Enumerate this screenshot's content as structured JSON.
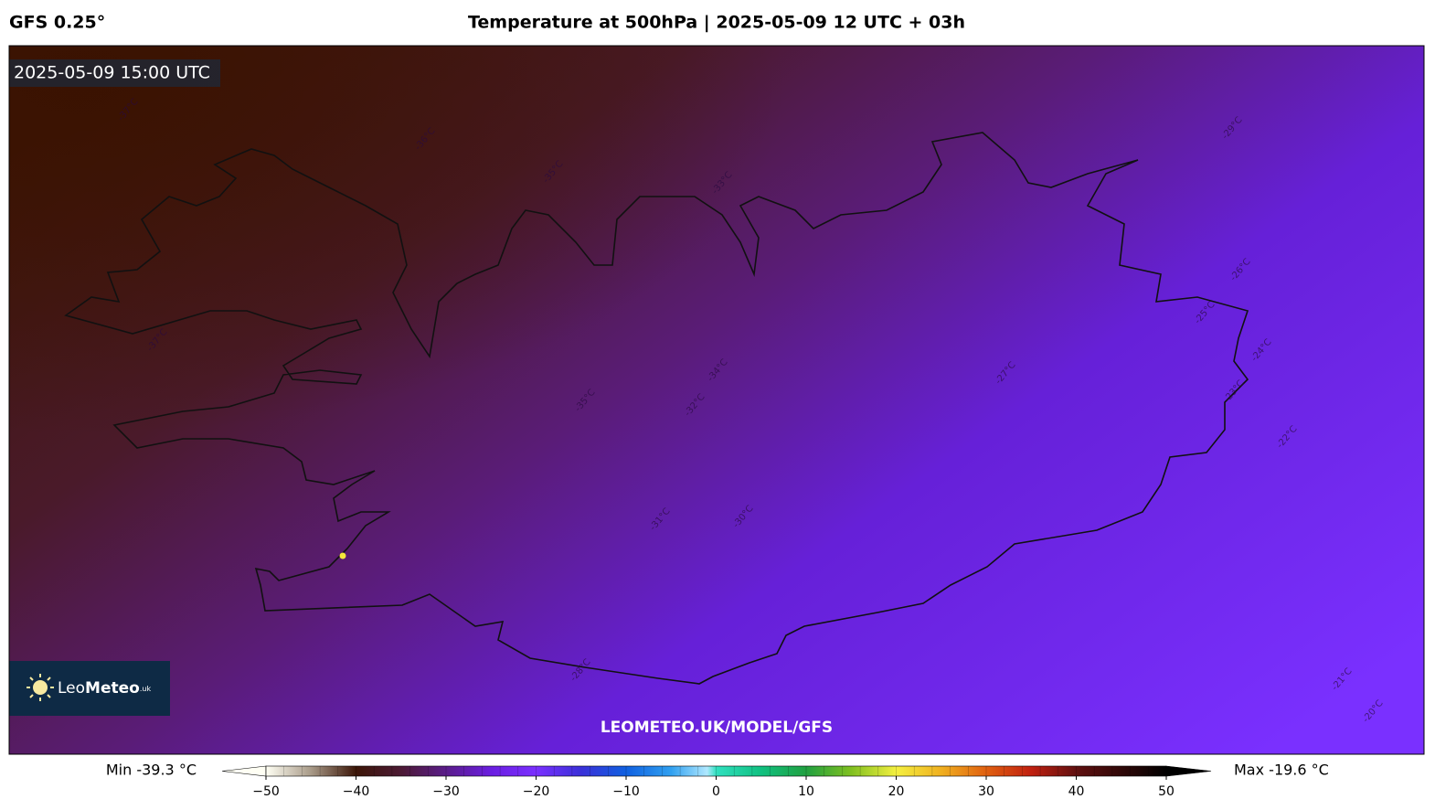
{
  "header": {
    "model": "GFS 0.25°",
    "title": "Temperature at 500hPa | 2025-05-09 12 UTC + 03h"
  },
  "map": {
    "valid_time": "2025-05-09 15:00 UTC",
    "watermark": "LEOMETEO.UK/MODEL/GFS",
    "logo": {
      "prefix": "Leo",
      "main": "Meteo",
      "suffix": ".uk"
    },
    "contour_labels": [
      "-37°C",
      "-37°C",
      "-36°C",
      "-35°C",
      "-35°C",
      "-34°C",
      "-33°C",
      "-31°C",
      "-30°C",
      "-28°C",
      "-27°C",
      "-26°C",
      "-25°C",
      "-24°C",
      "-23°C",
      "-22°C",
      "-21°C",
      "-20°C",
      "-32°C",
      "-29°C"
    ]
  },
  "colorbar": {
    "min_label": "Min -39.3 °C",
    "max_label": "Max -19.6 °C",
    "range": [
      -50,
      50
    ],
    "ticks": [
      {
        "value": -50,
        "label": "−50"
      },
      {
        "value": -40,
        "label": "−40"
      },
      {
        "value": -30,
        "label": "−30"
      },
      {
        "value": -20,
        "label": "−20"
      },
      {
        "value": -10,
        "label": "−10"
      },
      0,
      10,
      20,
      30,
      40,
      50
    ],
    "stops": [
      {
        "value": -50,
        "color": "#fffff4"
      },
      {
        "value": -45,
        "color": "#a89a88"
      },
      {
        "value": -40,
        "color": "#3c1608"
      },
      {
        "value": -35,
        "color": "#4c1a34"
      },
      {
        "value": -30,
        "color": "#5a1c8a"
      },
      {
        "value": -25,
        "color": "#6a1ee0"
      },
      {
        "value": -20,
        "color": "#7a30ff"
      },
      {
        "value": -15,
        "color": "#3a30d8"
      },
      {
        "value": -10,
        "color": "#1060e0"
      },
      {
        "value": -5,
        "color": "#30a0f0"
      },
      {
        "value": -1,
        "color": "#b0e8ff"
      },
      {
        "value": 0,
        "color": "#30e0c0"
      },
      {
        "value": 5,
        "color": "#10c080"
      },
      {
        "value": 10,
        "color": "#20a040"
      },
      {
        "value": 15,
        "color": "#80c020"
      },
      {
        "value": 20,
        "color": "#f4f040"
      },
      {
        "value": 25,
        "color": "#f0b020"
      },
      {
        "value": 30,
        "color": "#e06010"
      },
      {
        "value": 35,
        "color": "#c02010"
      },
      {
        "value": 40,
        "color": "#601010"
      },
      {
        "value": 45,
        "color": "#300808"
      },
      {
        "value": 50,
        "color": "#000000"
      }
    ]
  }
}
